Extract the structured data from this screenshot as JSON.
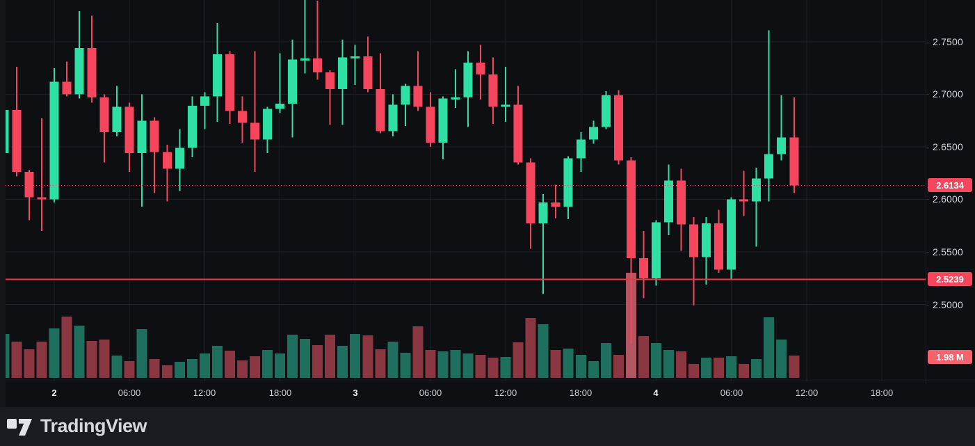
{
  "app": {
    "logo_text": "TradingView"
  },
  "colors": {
    "background": "#0e0f13",
    "bottom_bar": "#1a1b20",
    "grid": "#1e2128",
    "axis_text": "#d2d5dc",
    "up": "#2ee0a3",
    "down": "#f6465d",
    "volume_up": "#1f6f5e",
    "volume_down": "#8a3742",
    "volume_spike": "#b25663",
    "current_price_badge": "#f6465d",
    "alert_badge": "#f6465d",
    "volume_badge": "#f7626d",
    "alert_line": "#f23645",
    "current_price_line": "#ef4456"
  },
  "price_axis": {
    "labels": [
      {
        "text": "2.7500",
        "price": 2.75
      },
      {
        "text": "2.7000",
        "price": 2.7
      },
      {
        "text": "2.6500",
        "price": 2.65
      },
      {
        "text": "2.6000",
        "price": 2.6
      },
      {
        "text": "2.5500",
        "price": 2.55
      },
      {
        "text": "2.5000",
        "price": 2.5
      }
    ],
    "current_price": {
      "text": "2.6134",
      "price": 2.6134
    },
    "alert_price": {
      "text": "2.5239",
      "price": 2.5239
    },
    "volume_label": {
      "text": "1.98 M"
    }
  },
  "time_axis": {
    "ticks": [
      {
        "label": "2",
        "hour": 0,
        "bold": true
      },
      {
        "label": "06:00",
        "hour": 6,
        "bold": false
      },
      {
        "label": "12:00",
        "hour": 12,
        "bold": false
      },
      {
        "label": "18:00",
        "hour": 18,
        "bold": false
      },
      {
        "label": "3",
        "hour": 24,
        "bold": true
      },
      {
        "label": "06:00",
        "hour": 30,
        "bold": false
      },
      {
        "label": "12:00",
        "hour": 36,
        "bold": false
      },
      {
        "label": "18:00",
        "hour": 42,
        "bold": false
      },
      {
        "label": "4",
        "hour": 48,
        "bold": true
      },
      {
        "label": "06:00",
        "hour": 54,
        "bold": false
      },
      {
        "label": "12:00",
        "hour": 60,
        "bold": false
      },
      {
        "label": "18:00",
        "hour": 66,
        "bold": false
      }
    ]
  },
  "chart_data": {
    "type": "candlestick",
    "interval": "1h",
    "grid": true,
    "legend_position": "none",
    "ylim": [
      2.46,
      2.8
    ],
    "current_price": 2.6134,
    "alert_price": 2.5239,
    "last_volume_millions": 1.98,
    "volume_unit": "M",
    "volume_spike_index": 50,
    "columns": [
      "time",
      "open",
      "high",
      "low",
      "close",
      "volume_millions"
    ],
    "candles": [
      [
        "1 20:00",
        2.644,
        2.687,
        2.642,
        2.685,
        3.9
      ],
      [
        "1 21:00",
        2.685,
        2.726,
        2.622,
        2.626,
        3.22
      ],
      [
        "1 22:00",
        2.626,
        2.628,
        2.58,
        2.602,
        2.54
      ],
      [
        "1 23:00",
        2.602,
        2.677,
        2.57,
        2.6,
        3.22
      ],
      [
        "2 00:00",
        2.6,
        2.725,
        2.597,
        2.712,
        4.39
      ],
      [
        "2 01:00",
        2.712,
        2.731,
        2.698,
        2.7,
        5.45
      ],
      [
        "2 02:00",
        2.7,
        2.779,
        2.696,
        2.744,
        4.64
      ],
      [
        "2 03:00",
        2.744,
        2.775,
        2.692,
        2.697,
        3.28
      ],
      [
        "2 04:00",
        2.697,
        2.7,
        2.635,
        2.664,
        3.4
      ],
      [
        "2 05:00",
        2.664,
        2.708,
        2.66,
        2.688,
        1.98
      ],
      [
        "2 06:00",
        2.688,
        2.692,
        2.626,
        2.644,
        1.49
      ],
      [
        "2 07:00",
        2.644,
        2.7,
        2.593,
        2.675,
        4.33
      ],
      [
        "2 08:00",
        2.675,
        2.678,
        2.606,
        2.645,
        1.67
      ],
      [
        "2 09:00",
        2.645,
        2.652,
        2.598,
        2.629,
        1.11
      ],
      [
        "2 10:00",
        2.629,
        2.667,
        2.608,
        2.649,
        1.42
      ],
      [
        "2 11:00",
        2.649,
        2.698,
        2.64,
        2.689,
        1.67
      ],
      [
        "2 12:00",
        2.689,
        2.702,
        2.667,
        2.698,
        2.17
      ],
      [
        "2 13:00",
        2.698,
        2.768,
        2.674,
        2.738,
        2.85
      ],
      [
        "2 14:00",
        2.738,
        2.741,
        2.672,
        2.684,
        2.41
      ],
      [
        "2 15:00",
        2.684,
        2.698,
        2.654,
        2.673,
        1.55
      ],
      [
        "2 16:00",
        2.673,
        2.741,
        2.626,
        2.657,
        1.92
      ],
      [
        "2 17:00",
        2.657,
        2.688,
        2.644,
        2.686,
        2.48
      ],
      [
        "2 18:00",
        2.686,
        2.739,
        2.682,
        2.691,
        2.17
      ],
      [
        "2 19:00",
        2.691,
        2.752,
        2.659,
        2.733,
        3.84
      ],
      [
        "2 20:00",
        2.733,
        2.79,
        2.72,
        2.734,
        3.47
      ],
      [
        "2 21:00",
        2.734,
        2.789,
        2.714,
        2.721,
        2.91
      ],
      [
        "2 22:00",
        2.721,
        2.723,
        2.671,
        2.705,
        3.84
      ],
      [
        "2 23:00",
        2.705,
        2.752,
        2.671,
        2.735,
        2.85
      ],
      [
        "3 00:00",
        2.735,
        2.747,
        2.709,
        2.736,
        3.9
      ],
      [
        "3 01:00",
        2.736,
        2.755,
        2.702,
        2.705,
        3.78
      ],
      [
        "3 02:00",
        2.705,
        2.739,
        2.663,
        2.665,
        2.54
      ],
      [
        "3 03:00",
        2.665,
        2.7,
        2.66,
        2.69,
        3.22
      ],
      [
        "3 04:00",
        2.69,
        2.71,
        2.67,
        2.708,
        2.23
      ],
      [
        "3 05:00",
        2.708,
        2.741,
        2.684,
        2.688,
        4.58
      ],
      [
        "3 06:00",
        2.688,
        2.702,
        2.65,
        2.654,
        2.48
      ],
      [
        "3 07:00",
        2.654,
        2.698,
        2.638,
        2.696,
        2.35
      ],
      [
        "3 08:00",
        2.696,
        2.724,
        2.687,
        2.697,
        2.48
      ],
      [
        "3 09:00",
        2.697,
        2.741,
        2.669,
        2.73,
        2.17
      ],
      [
        "3 10:00",
        2.73,
        2.747,
        2.695,
        2.719,
        2.04
      ],
      [
        "3 11:00",
        2.719,
        2.735,
        2.672,
        2.688,
        1.79
      ],
      [
        "3 12:00",
        2.688,
        2.726,
        2.674,
        2.69,
        1.86
      ],
      [
        "3 13:00",
        2.69,
        2.708,
        2.633,
        2.635,
        3.16
      ],
      [
        "3 14:00",
        2.635,
        2.639,
        2.553,
        2.577,
        5.32
      ],
      [
        "3 15:00",
        2.577,
        2.605,
        2.51,
        2.597,
        4.77
      ],
      [
        "3 16:00",
        2.597,
        2.614,
        2.582,
        2.593,
        2.48
      ],
      [
        "3 17:00",
        2.593,
        2.641,
        2.581,
        2.639,
        2.6
      ],
      [
        "3 18:00",
        2.639,
        2.664,
        2.626,
        2.657,
        2.04
      ],
      [
        "3 19:00",
        2.657,
        2.675,
        2.653,
        2.669,
        1.49
      ],
      [
        "3 20:00",
        2.669,
        2.703,
        2.667,
        2.699,
        3.09
      ],
      [
        "3 21:00",
        2.699,
        2.704,
        2.633,
        2.637,
        2.04
      ],
      [
        "3 22:00",
        2.637,
        2.64,
        2.463,
        2.544,
        9.34
      ],
      [
        "3 23:00",
        2.544,
        2.57,
        2.506,
        2.525,
        3.71
      ],
      [
        "4 00:00",
        2.525,
        2.58,
        2.518,
        2.578,
        3.09
      ],
      [
        "4 01:00",
        2.578,
        2.633,
        2.566,
        2.618,
        2.48
      ],
      [
        "4 02:00",
        2.618,
        2.629,
        2.551,
        2.576,
        2.35
      ],
      [
        "4 03:00",
        2.576,
        2.583,
        2.499,
        2.545,
        1.24
      ],
      [
        "4 04:00",
        2.545,
        2.583,
        2.519,
        2.577,
        1.79
      ],
      [
        "4 05:00",
        2.577,
        2.59,
        2.53,
        2.533,
        1.79
      ],
      [
        "4 06:00",
        2.533,
        2.602,
        2.524,
        2.6,
        1.92
      ],
      [
        "4 07:00",
        2.6,
        2.627,
        2.584,
        2.598,
        1.24
      ],
      [
        "4 08:00",
        2.598,
        2.63,
        2.555,
        2.62,
        1.67
      ],
      [
        "4 09:00",
        2.62,
        2.761,
        2.598,
        2.643,
        5.38
      ],
      [
        "4 10:00",
        2.643,
        2.699,
        2.637,
        2.659,
        3.4
      ],
      [
        "4 11:00",
        2.659,
        2.697,
        2.606,
        2.6134,
        1.98
      ]
    ]
  }
}
